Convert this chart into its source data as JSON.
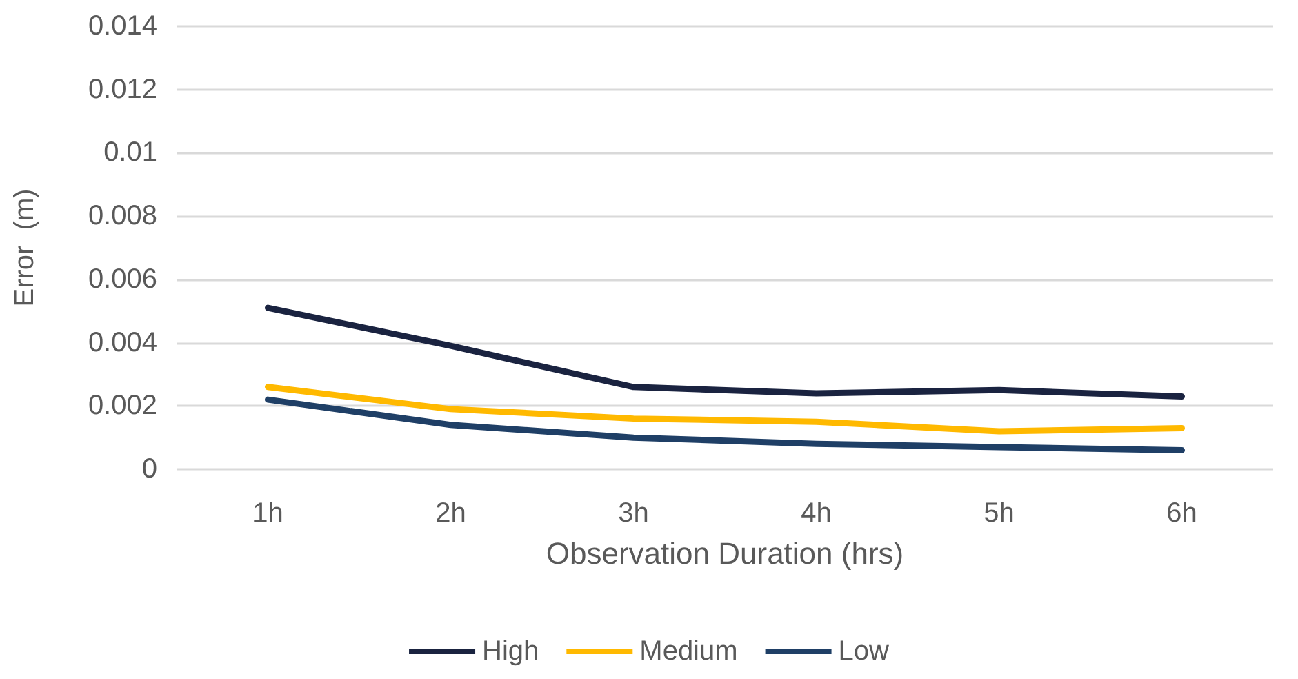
{
  "chart_data": {
    "type": "line",
    "xlabel": "Observation Duration (hrs)",
    "ylabel": "Error  (m)",
    "categories": [
      "1h",
      "2h",
      "3h",
      "4h",
      "5h",
      "6h"
    ],
    "series": [
      {
        "name": "High",
        "color": "#1a2340",
        "values": [
          0.0051,
          0.0039,
          0.0026,
          0.0024,
          0.0025,
          0.0023
        ]
      },
      {
        "name": "Medium",
        "color": "#ffb900",
        "values": [
          0.0026,
          0.0019,
          0.0016,
          0.0015,
          0.0012,
          0.0013
        ]
      },
      {
        "name": "Low",
        "color": "#1f3f66",
        "values": [
          0.0022,
          0.0014,
          0.001,
          0.0008,
          0.0007,
          0.0006
        ]
      }
    ],
    "ylim": [
      0,
      0.014
    ],
    "yticks": [
      0,
      0.002,
      0.004,
      0.006,
      0.008,
      0.01,
      0.012,
      0.014
    ],
    "grid": "y",
    "legend": "bottom",
    "marker": "none",
    "line_style": "solid"
  }
}
